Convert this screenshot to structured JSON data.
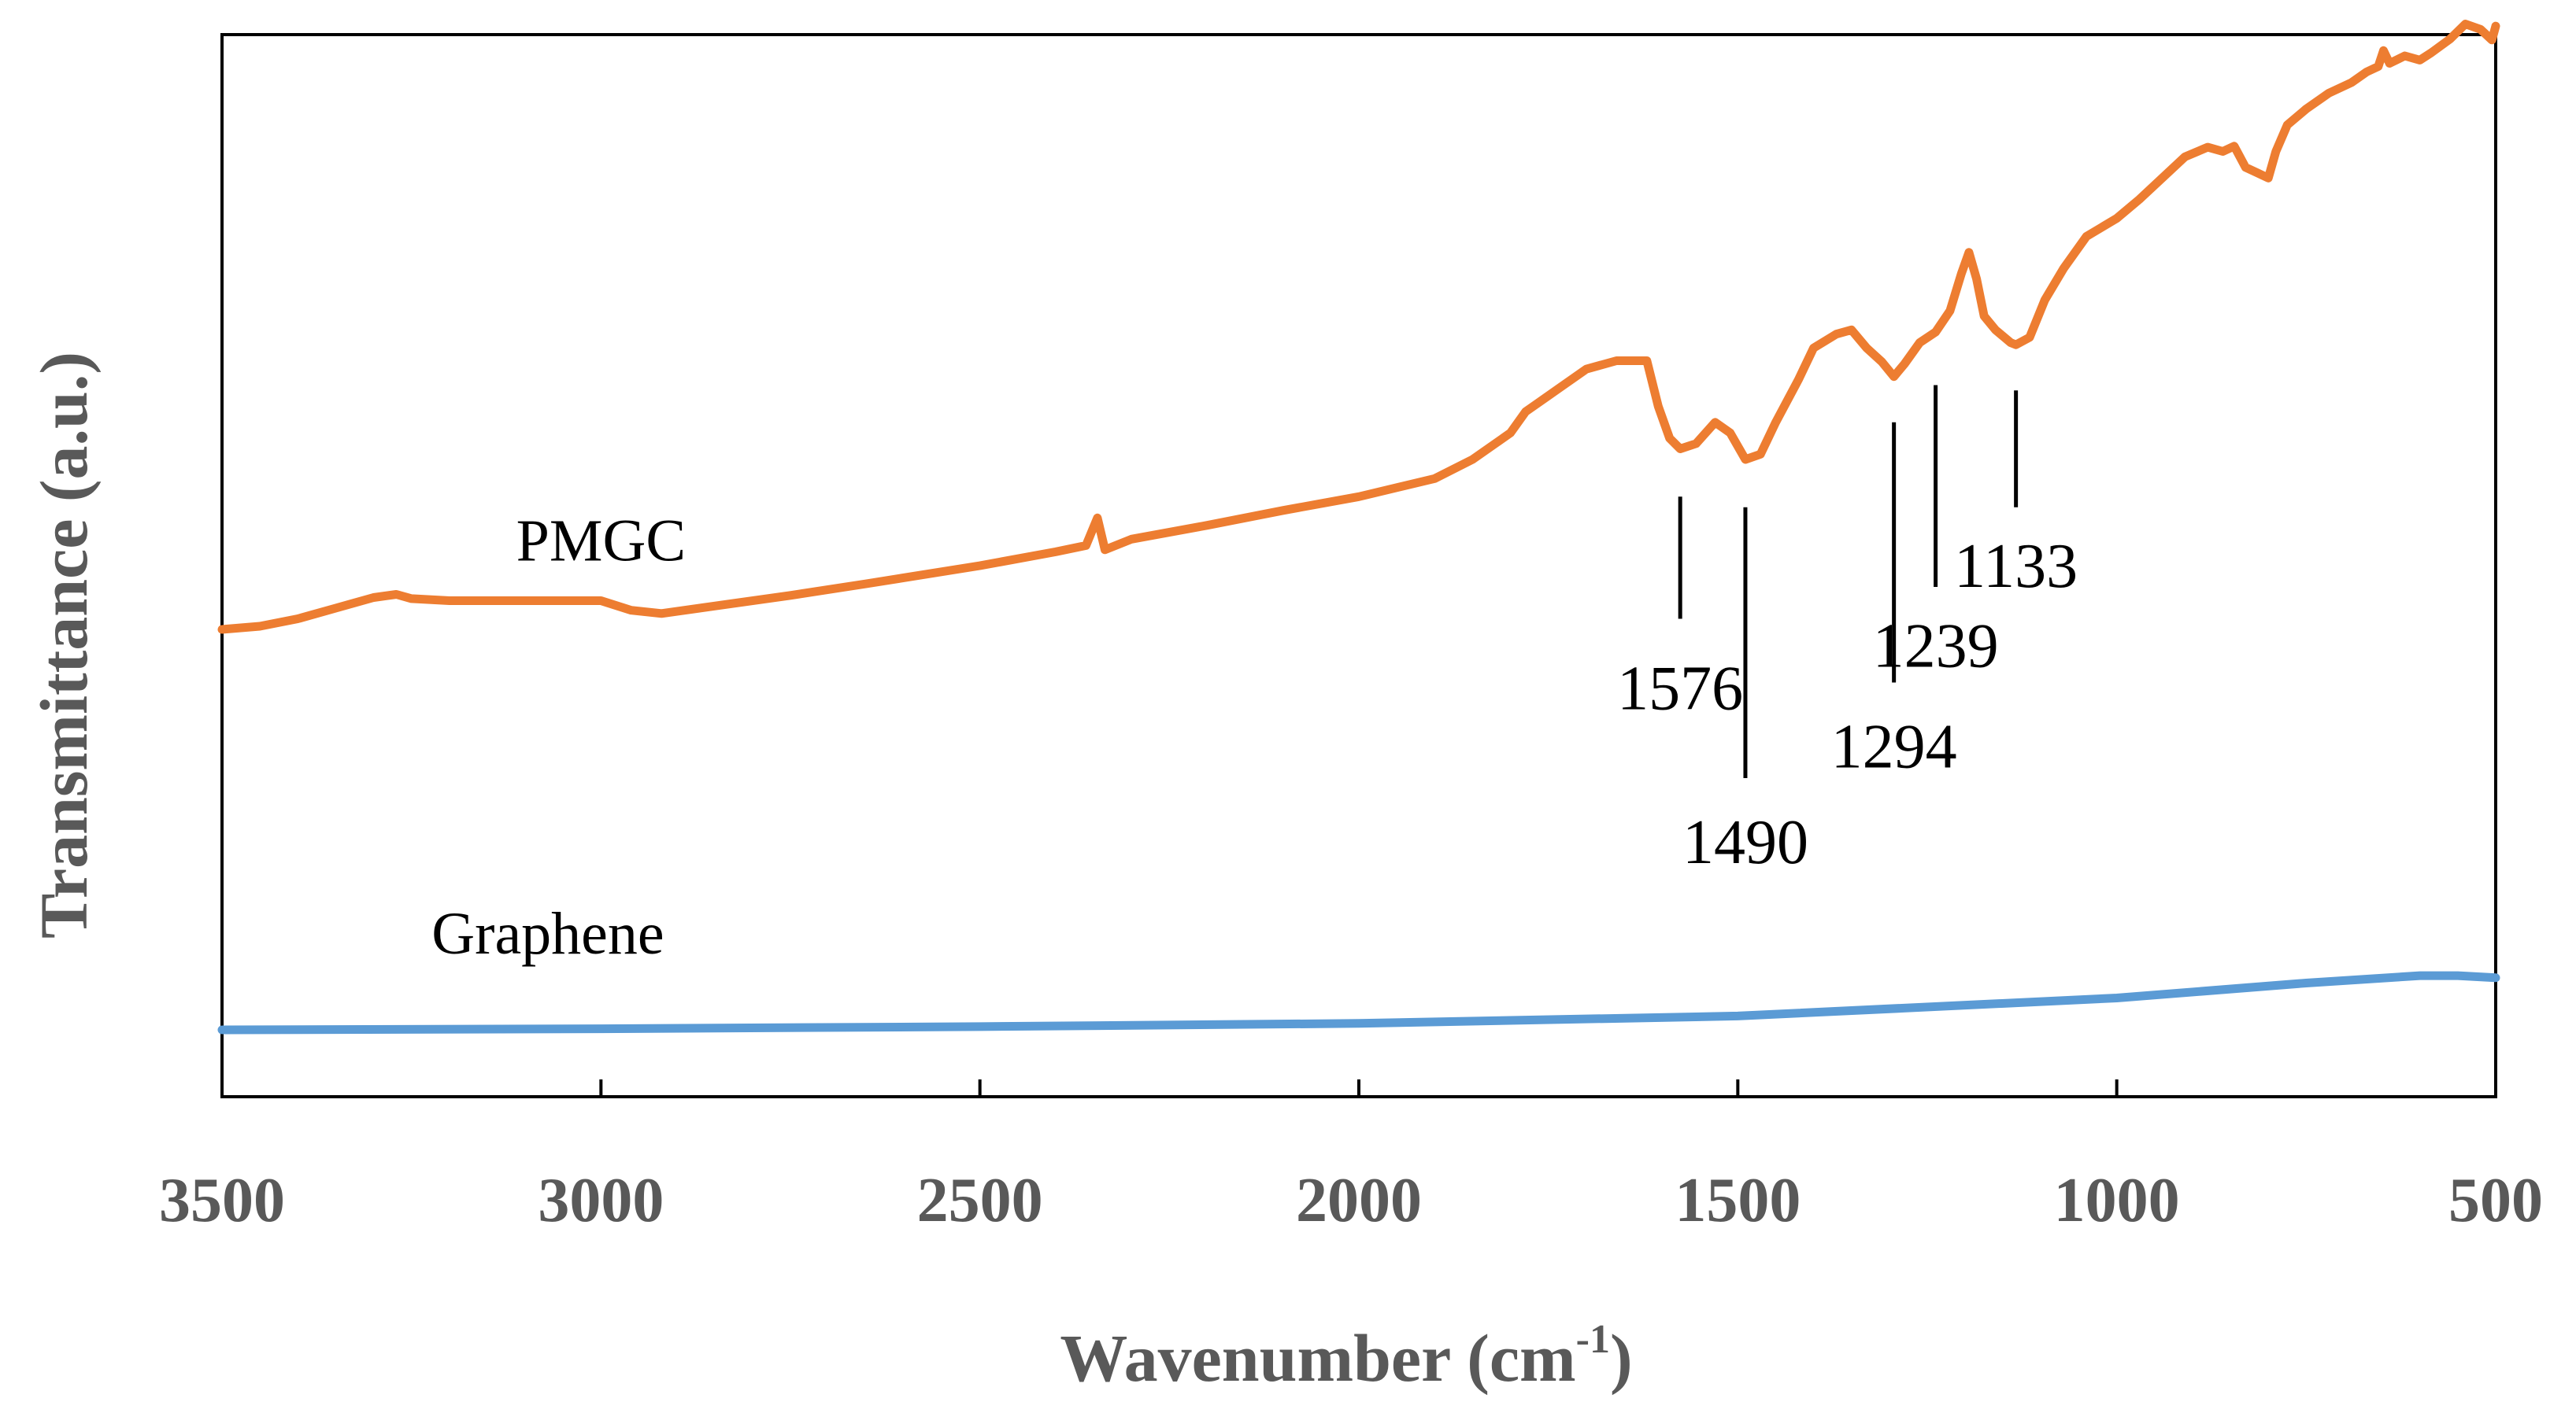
{
  "chart_data": {
    "type": "line",
    "title": "",
    "xlabel": "Wavenumber (cm",
    "xlabel_sup": "-1",
    "xlabel_end": ")",
    "ylabel": "Transmittance (a.u.)",
    "xlim": [
      3500,
      500
    ],
    "x_reversed": true,
    "ylim": [
      0,
      100
    ],
    "grid": false,
    "x_ticks": [
      3500,
      3000,
      2500,
      2000,
      1500,
      1000,
      500
    ],
    "x_tick_labels": [
      "3500",
      "3000",
      "2500",
      "2000",
      "1500",
      "1000",
      "500"
    ],
    "series": [
      {
        "name": "PMGC",
        "label": "PMGC",
        "color": "#ED7D31",
        "points": [
          [
            3500,
            44.0
          ],
          [
            3450,
            44.3
          ],
          [
            3400,
            45.0
          ],
          [
            3350,
            46.0
          ],
          [
            3300,
            47.0
          ],
          [
            3270,
            47.3
          ],
          [
            3250,
            46.9
          ],
          [
            3200,
            46.7
          ],
          [
            3100,
            46.7
          ],
          [
            3000,
            46.7
          ],
          [
            2960,
            45.8
          ],
          [
            2920,
            45.5
          ],
          [
            2850,
            46.2
          ],
          [
            2750,
            47.2
          ],
          [
            2650,
            48.3
          ],
          [
            2500,
            50.0
          ],
          [
            2400,
            51.3
          ],
          [
            2360,
            51.9
          ],
          [
            2345,
            54.5
          ],
          [
            2335,
            51.5
          ],
          [
            2300,
            52.5
          ],
          [
            2200,
            53.8
          ],
          [
            2100,
            55.2
          ],
          [
            2000,
            56.5
          ],
          [
            1900,
            58.2
          ],
          [
            1850,
            60.0
          ],
          [
            1800,
            62.5
          ],
          [
            1780,
            64.5
          ],
          [
            1740,
            66.5
          ],
          [
            1700,
            68.5
          ],
          [
            1660,
            69.3
          ],
          [
            1620,
            69.3
          ],
          [
            1605,
            65.0
          ],
          [
            1590,
            62.0
          ],
          [
            1576,
            61.0
          ],
          [
            1555,
            61.5
          ],
          [
            1530,
            63.5
          ],
          [
            1510,
            62.5
          ],
          [
            1490,
            60.0
          ],
          [
            1470,
            60.5
          ],
          [
            1450,
            63.5
          ],
          [
            1420,
            67.5
          ],
          [
            1400,
            70.5
          ],
          [
            1370,
            71.8
          ],
          [
            1350,
            72.2
          ],
          [
            1330,
            70.5
          ],
          [
            1310,
            69.2
          ],
          [
            1294,
            67.8
          ],
          [
            1280,
            69.0
          ],
          [
            1260,
            71.0
          ],
          [
            1239,
            72.0
          ],
          [
            1220,
            74.0
          ],
          [
            1205,
            77.5
          ],
          [
            1195,
            79.5
          ],
          [
            1185,
            77.0
          ],
          [
            1175,
            73.5
          ],
          [
            1160,
            72.2
          ],
          [
            1140,
            71.0
          ],
          [
            1133,
            70.8
          ],
          [
            1115,
            71.5
          ],
          [
            1095,
            75.0
          ],
          [
            1070,
            78.0
          ],
          [
            1040,
            81.0
          ],
          [
            1000,
            82.7
          ],
          [
            970,
            84.5
          ],
          [
            940,
            86.5
          ],
          [
            910,
            88.5
          ],
          [
            880,
            89.4
          ],
          [
            860,
            89.0
          ],
          [
            845,
            89.5
          ],
          [
            830,
            87.5
          ],
          [
            815,
            87.0
          ],
          [
            800,
            86.5
          ],
          [
            790,
            89.0
          ],
          [
            775,
            91.5
          ],
          [
            750,
            93.0
          ],
          [
            720,
            94.5
          ],
          [
            690,
            95.5
          ],
          [
            670,
            96.5
          ],
          [
            655,
            97.0
          ],
          [
            648,
            98.5
          ],
          [
            640,
            97.3
          ],
          [
            620,
            98.0
          ],
          [
            600,
            97.6
          ],
          [
            585,
            98.3
          ],
          [
            560,
            99.6
          ],
          [
            540,
            101.0
          ],
          [
            520,
            100.5
          ],
          [
            505,
            99.5
          ],
          [
            500,
            100.8
          ]
        ]
      },
      {
        "name": "Graphene",
        "label": "Graphene",
        "color": "#5B9BD5",
        "points": [
          [
            3500,
            6.3
          ],
          [
            3000,
            6.4
          ],
          [
            2500,
            6.6
          ],
          [
            2000,
            6.9
          ],
          [
            1500,
            7.6
          ],
          [
            1000,
            9.3
          ],
          [
            750,
            10.7
          ],
          [
            600,
            11.4
          ],
          [
            550,
            11.4
          ],
          [
            500,
            11.2
          ]
        ]
      }
    ],
    "annotations": [
      {
        "text": "1576",
        "x": 1576,
        "line_y": [
          56.5,
          45.0
        ],
        "label_y": 36.5
      },
      {
        "text": "1490",
        "x": 1490,
        "line_y": [
          55.5,
          30.0
        ],
        "label_y": 22.0
      },
      {
        "text": "1294",
        "x": 1294,
        "line_y": [
          63.5,
          39.0
        ],
        "label_y": 31.0
      },
      {
        "text": "1239",
        "x": 1239,
        "line_y": [
          67.0,
          48.0
        ],
        "label_y": 40.5
      },
      {
        "text": "1133",
        "x": 1133,
        "line_y": [
          66.5,
          55.5
        ],
        "label_y": 48.0
      }
    ],
    "series_labels": [
      {
        "text": "PMGC",
        "x": 3000,
        "y": 50.5
      },
      {
        "text": "Graphene",
        "x": 3070,
        "y": 13.5
      }
    ]
  }
}
